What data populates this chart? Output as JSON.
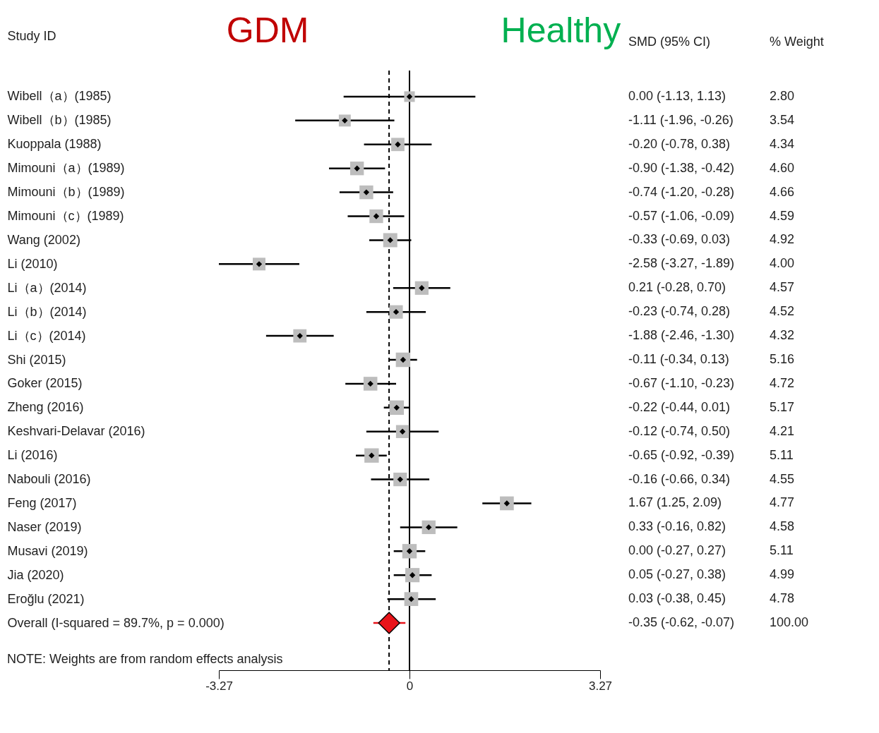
{
  "chart_data": {
    "type": "scatter",
    "orientation": "horizontal",
    "ylabel": "Study ID",
    "categories": [
      "Wibell（a）(1985)",
      "Wibell（b）(1985)",
      "Kuoppala (1988)",
      "Mimouni（a）(1989)",
      "Mimouni（b）(1989)",
      "Mimouni（c）(1989)",
      "Wang (2002)",
      "Li (2010)",
      "Li（a）(2014)",
      "Li（b）(2014)",
      "Li（c）(2014)",
      "Shi (2015)",
      "Goker (2015)",
      "Zheng (2016)",
      "Keshvari-Delavar (2016)",
      "Li (2016)",
      "Nabouli (2016)",
      "Feng (2017)",
      "Naser (2019)",
      "Musavi (2019)",
      "Jia (2020)",
      "Eroğlu (2021)",
      "Overall (I-squared = 89.7%, p = 0.000)"
    ],
    "xlim": [
      -3.27,
      3.27
    ],
    "xticks": [
      -3.27,
      0,
      3.27
    ],
    "grid": false,
    "series": [
      {
        "type": "bubble",
        "color": "#000000",
        "marker": "diamond",
        "values": [
          0.0,
          -1.11,
          -0.2,
          -0.9,
          -0.74,
          -0.57,
          -0.33,
          -2.58,
          0.21,
          -0.23,
          -1.88,
          -0.11,
          -0.67,
          -0.22,
          -0.12,
          -0.65,
          -0.16,
          1.67,
          0.33,
          0.0,
          0.05,
          0.03,
          null
        ],
        "errors": [
          [
            -1.13,
            1.13
          ],
          [
            -1.96,
            -0.26
          ],
          [
            -0.78,
            0.38
          ],
          [
            -1.38,
            -0.42
          ],
          [
            -1.2,
            -0.28
          ],
          [
            -1.06,
            -0.09
          ],
          [
            -0.69,
            0.03
          ],
          [
            -3.27,
            -1.89
          ],
          [
            -0.28,
            0.7
          ],
          [
            -0.74,
            0.28
          ],
          [
            -2.46,
            -1.3
          ],
          [
            -0.34,
            0.13
          ],
          [
            -1.1,
            -0.23
          ],
          [
            -0.44,
            0.01
          ],
          [
            -0.74,
            0.5
          ],
          [
            -0.92,
            -0.39
          ],
          [
            -0.66,
            0.34
          ],
          [
            1.25,
            2.09
          ],
          [
            -0.16,
            0.82
          ],
          [
            -0.27,
            0.27
          ],
          [
            -0.27,
            0.38
          ],
          [
            -0.38,
            0.45
          ],
          null
        ],
        "sizes": [
          0.54,
          0.68,
          0.84,
          0.89,
          0.9,
          0.89,
          0.95,
          0.77,
          0.88,
          0.87,
          0.84,
          1.0,
          0.91,
          1.0,
          0.81,
          0.99,
          0.88,
          0.92,
          0.89,
          0.99,
          0.97,
          0.92,
          null
        ]
      },
      {
        "type": "scatter",
        "color": "#e8141a",
        "marker": "diamond",
        "values": [
          null,
          null,
          null,
          null,
          null,
          null,
          null,
          null,
          null,
          null,
          null,
          null,
          null,
          null,
          null,
          null,
          null,
          null,
          null,
          null,
          null,
          null,
          -0.35
        ],
        "errors": [
          null,
          null,
          null,
          null,
          null,
          null,
          null,
          null,
          null,
          null,
          null,
          null,
          null,
          null,
          null,
          null,
          null,
          null,
          null,
          null,
          null,
          null,
          [
            -0.62,
            -0.07
          ]
        ]
      }
    ],
    "ref_lines": [
      {
        "axis": "x",
        "value": 0,
        "line_style": "solid"
      },
      {
        "axis": "x",
        "value": -0.35,
        "line_style": "dashed"
      }
    ],
    "annotations": [
      "GDM",
      "Healthy",
      "SMD (95% CI)",
      "% Weight",
      "NOTE: Weights are from random effects analysis",
      "0.00 (-1.13, 1.13)",
      "-1.11 (-1.96, -0.26)",
      "-0.20 (-0.78, 0.38)",
      "-0.90 (-1.38, -0.42)",
      "-0.74 (-1.20, -0.28)",
      "-0.57 (-1.06, -0.09)",
      "-0.33 (-0.69, 0.03)",
      "-2.58 (-3.27, -1.89)",
      "0.21 (-0.28, 0.70)",
      "-0.23 (-0.74, 0.28)",
      "-1.88 (-2.46, -1.30)",
      "-0.11 (-0.34, 0.13)",
      "-0.67 (-1.10, -0.23)",
      "-0.22 (-0.44, 0.01)",
      "-0.12 (-0.74, 0.50)",
      "-0.65 (-0.92, -0.39)",
      "-0.16 (-0.66, 0.34)",
      "1.67 (1.25, 2.09)",
      "0.33 (-0.16, 0.82)",
      "0.00 (-0.27, 0.27)",
      "0.05 (-0.27, 0.38)",
      "0.03 (-0.38, 0.45)",
      "-0.35 (-0.62, -0.07)",
      "2.80",
      "3.54",
      "4.34",
      "4.60",
      "4.66",
      "4.59",
      "4.92",
      "4.00",
      "4.57",
      "4.52",
      "4.32",
      "5.16",
      "4.72",
      "5.17",
      "4.21",
      "5.11",
      "4.55",
      "4.77",
      "4.58",
      "5.11",
      "4.99",
      "4.78",
      "100.00"
    ]
  }
}
